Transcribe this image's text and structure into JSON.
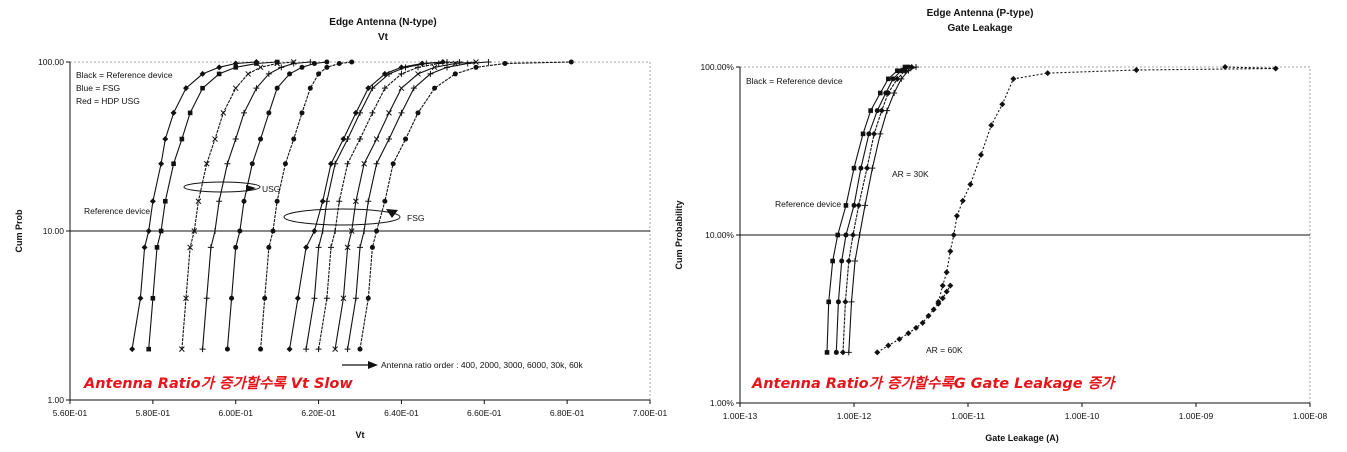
{
  "chart_data": [
    {
      "type": "line",
      "title": "Edge Antenna (N-type)",
      "subtitle": "Vt",
      "xlabel": "Vt",
      "ylabel": "Cum Prob",
      "xscale": "linear",
      "yscale": "log",
      "xlim": [
        0.56,
        0.7
      ],
      "ylim": [
        1,
        100
      ],
      "x_ticks": [
        "5.60E-01",
        "5.80E-01",
        "6.00E-01",
        "6.20E-01",
        "6.40E-01",
        "6.60E-01",
        "6.80E-01",
        "7.00E-01"
      ],
      "y_ticks": [
        "1.00",
        "10.00",
        "100.00"
      ],
      "reference_line_y": 10,
      "legend_notes": [
        "Black = Reference device",
        "Blue = FSG",
        "Red = HDP USG"
      ],
      "annotations": {
        "usg": "USG",
        "fsg": "FSG",
        "reference": "Reference device",
        "order": "Antenna ratio order : 400, 2000, 3000, 6000, 30k, 60k"
      },
      "overlay_text": "Antenna Ratio가 증가할수록 Vt Slow",
      "colors": {
        "series": "#111111",
        "overlay": "#e8141b"
      },
      "series": [
        {
          "marker": "diamond",
          "x": [
            0.575,
            0.577,
            0.578,
            0.579,
            0.58,
            0.582,
            0.583,
            0.585,
            0.588,
            0.592,
            0.596,
            0.6,
            0.605
          ],
          "y": [
            2,
            4,
            8,
            10,
            15,
            25,
            35,
            50,
            70,
            85,
            93,
            98,
            100
          ]
        },
        {
          "marker": "square",
          "x": [
            0.579,
            0.58,
            0.581,
            0.582,
            0.583,
            0.585,
            0.587,
            0.589,
            0.592,
            0.596,
            0.6,
            0.605,
            0.61
          ],
          "y": [
            2,
            4,
            8,
            10,
            15,
            25,
            35,
            50,
            70,
            85,
            93,
            98,
            100
          ]
        },
        {
          "marker": "x",
          "x": [
            0.587,
            0.588,
            0.589,
            0.59,
            0.591,
            0.593,
            0.595,
            0.597,
            0.6,
            0.603,
            0.606,
            0.61,
            0.614
          ],
          "y": [
            2,
            4,
            8,
            10,
            15,
            25,
            35,
            50,
            70,
            85,
            93,
            98,
            100
          ]
        },
        {
          "marker": "plus",
          "x": [
            0.592,
            0.593,
            0.594,
            0.595,
            0.596,
            0.598,
            0.6,
            0.602,
            0.605,
            0.608,
            0.611,
            0.614,
            0.618
          ],
          "y": [
            2,
            4,
            8,
            10,
            15,
            25,
            35,
            50,
            70,
            85,
            93,
            98,
            100
          ]
        },
        {
          "marker": "dot",
          "x": [
            0.598,
            0.599,
            0.6,
            0.601,
            0.602,
            0.604,
            0.606,
            0.608,
            0.61,
            0.613,
            0.616,
            0.619,
            0.622
          ],
          "y": [
            2,
            4,
            8,
            10,
            15,
            25,
            35,
            50,
            70,
            85,
            93,
            98,
            100
          ]
        },
        {
          "marker": "dot",
          "x": [
            0.606,
            0.607,
            0.608,
            0.609,
            0.61,
            0.612,
            0.614,
            0.616,
            0.618,
            0.62,
            0.622,
            0.625,
            0.628
          ],
          "y": [
            2,
            4,
            8,
            10,
            15,
            25,
            35,
            50,
            70,
            85,
            93,
            98,
            100
          ]
        },
        {
          "marker": "diamond",
          "x": [
            0.613,
            0.615,
            0.617,
            0.619,
            0.621,
            0.623,
            0.626,
            0.629,
            0.632,
            0.636,
            0.64,
            0.645,
            0.65
          ],
          "y": [
            2,
            4,
            8,
            10,
            15,
            25,
            35,
            50,
            70,
            85,
            93,
            98,
            100
          ]
        },
        {
          "marker": "plus",
          "x": [
            0.617,
            0.619,
            0.62,
            0.621,
            0.622,
            0.624,
            0.627,
            0.63,
            0.633,
            0.637,
            0.641,
            0.646,
            0.651
          ],
          "y": [
            2,
            4,
            8,
            10,
            15,
            25,
            35,
            50,
            70,
            85,
            93,
            98,
            100
          ]
        },
        {
          "marker": "plus",
          "x": [
            0.62,
            0.622,
            0.623,
            0.624,
            0.625,
            0.627,
            0.63,
            0.633,
            0.636,
            0.64,
            0.644,
            0.649,
            0.654
          ],
          "y": [
            2,
            4,
            8,
            10,
            15,
            25,
            35,
            50,
            70,
            85,
            93,
            98,
            100
          ]
        },
        {
          "marker": "x",
          "x": [
            0.624,
            0.626,
            0.627,
            0.628,
            0.629,
            0.631,
            0.634,
            0.637,
            0.64,
            0.644,
            0.648,
            0.653,
            0.658
          ],
          "y": [
            2,
            4,
            8,
            10,
            15,
            25,
            35,
            50,
            70,
            85,
            93,
            98,
            100
          ]
        },
        {
          "marker": "plus",
          "x": [
            0.627,
            0.629,
            0.63,
            0.631,
            0.632,
            0.634,
            0.637,
            0.64,
            0.643,
            0.647,
            0.651,
            0.656,
            0.661
          ],
          "y": [
            2,
            4,
            8,
            10,
            15,
            25,
            35,
            50,
            70,
            85,
            93,
            98,
            100
          ]
        },
        {
          "marker": "dot",
          "x": [
            0.63,
            0.632,
            0.633,
            0.634,
            0.636,
            0.638,
            0.641,
            0.644,
            0.648,
            0.653,
            0.658,
            0.665,
            0.681
          ],
          "y": [
            2,
            4,
            8,
            10,
            15,
            25,
            35,
            50,
            70,
            85,
            93,
            98,
            100
          ]
        }
      ]
    },
    {
      "type": "line",
      "title": "Edge Antenna (P-type)",
      "subtitle": "Gate Leakage",
      "xlabel": "Gate Leakage (A)",
      "ylabel": "Cum Probability",
      "xscale": "log",
      "yscale": "log",
      "xlim": [
        1e-13,
        1e-08
      ],
      "ylim": [
        1,
        100
      ],
      "x_ticks": [
        "1.00E-13",
        "1.00E-12",
        "1.00E-11",
        "1.00E-10",
        "1.00E-09",
        "1.00E-08"
      ],
      "y_ticks": [
        "1.00%",
        "10.00%",
        "100.00%"
      ],
      "reference_line_y": 10,
      "legend_notes": [
        "Black = Reference device"
      ],
      "annotations": {
        "ar30": "AR = 30K",
        "reference": "Reference device",
        "ar60": "AR = 60K"
      },
      "overlay_text": "Antenna Ratio가 증가할수록G Gate Leakage 증가",
      "colors": {
        "series": "#111111",
        "overlay": "#e8141b"
      },
      "series": [
        {
          "marker": "square",
          "x": [
            5.8e-13,
            6e-13,
            6.5e-13,
            7.2e-13,
            8.5e-13,
            1e-12,
            1.2e-12,
            1.4e-12,
            1.7e-12,
            2e-12,
            2.4e-12,
            2.8e-12
          ],
          "y": [
            2,
            4,
            7,
            10,
            15,
            25,
            40,
            55,
            70,
            85,
            95,
            100
          ]
        },
        {
          "marker": "dot",
          "x": [
            7e-13,
            7.3e-13,
            7.8e-13,
            8.5e-13,
            1e-12,
            1.15e-12,
            1.35e-12,
            1.6e-12,
            1.9e-12,
            2.2e-12,
            2.6e-12,
            3e-12
          ],
          "y": [
            2,
            4,
            7,
            10,
            15,
            25,
            40,
            55,
            70,
            85,
            95,
            100
          ]
        },
        {
          "marker": "diamond",
          "x": [
            8e-13,
            8.4e-13,
            9e-13,
            9.8e-13,
            1.1e-12,
            1.3e-12,
            1.5e-12,
            1.75e-12,
            2e-12,
            2.4e-12,
            2.8e-12,
            3.2e-12
          ],
          "y": [
            2,
            4,
            7,
            10,
            15,
            25,
            40,
            55,
            70,
            85,
            95,
            100
          ]
        },
        {
          "marker": "plus",
          "x": [
            9e-13,
            9.5e-13,
            1.02e-12,
            1.12e-12,
            1.25e-12,
            1.45e-12,
            1.7e-12,
            1.95e-12,
            2.25e-12,
            2.6e-12,
            3e-12,
            3.5e-12
          ],
          "y": [
            2,
            4,
            7,
            10,
            15,
            25,
            40,
            55,
            70,
            85,
            95,
            100
          ]
        },
        {
          "marker": "diamond",
          "x": [
            1.6e-12,
            2e-12,
            2.5e-12,
            3e-12,
            3.5e-12,
            4e-12,
            4.5e-12,
            5e-12,
            5.5e-12,
            6e-12,
            6.5e-12,
            7e-12
          ],
          "y": [
            2,
            2.2,
            2.4,
            2.6,
            2.8,
            3,
            3.3,
            3.6,
            3.9,
            4.2,
            4.6,
            5
          ]
        },
        {
          "marker": "diamond",
          "x": [
            5.5e-12,
            6e-12,
            6.5e-12,
            7e-12,
            7.5e-12,
            8e-12,
            9e-12,
            1.05e-11,
            1.3e-11,
            1.6e-11,
            2e-11,
            2.5e-11,
            5e-11,
            3e-10,
            5e-09,
            1.8e-09
          ],
          "y": [
            4,
            5,
            6,
            8,
            10,
            13,
            16,
            20,
            30,
            45,
            60,
            85,
            92,
            96,
            98,
            100
          ]
        }
      ]
    }
  ]
}
